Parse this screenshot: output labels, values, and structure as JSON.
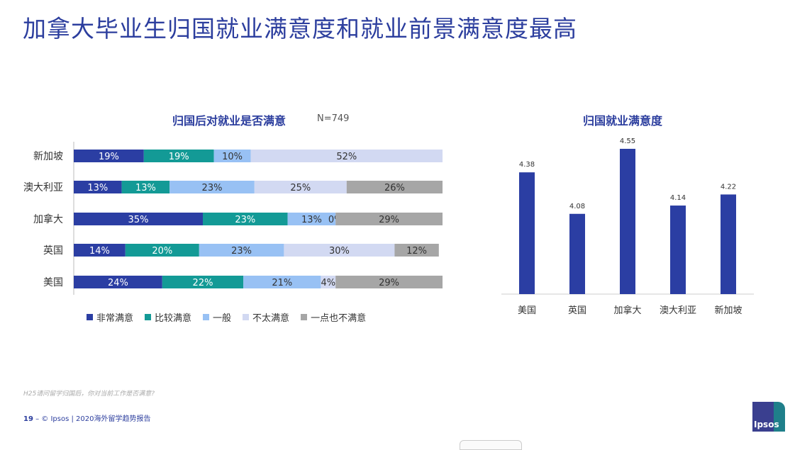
{
  "title": "加拿大毕业生归国就业满意度和就业前景满意度最高",
  "colors": {
    "very_satisfied": "#2b3ea3",
    "satisfied": "#139a96",
    "neutral": "#98c1f4",
    "not_very": "#d2d9f2",
    "not_at_all": "#a6a6a6",
    "bar_right": "#2b3ea3"
  },
  "left_chart": {
    "title": "归国后对就业是否满意",
    "n_label": "N=749"
  },
  "right_chart": {
    "title": "归国就业满意度"
  },
  "legend": [
    "非常满意",
    "比较满意",
    "一般",
    "不太满意",
    "一点也不满意"
  ],
  "chart_data": [
    {
      "type": "bar",
      "orientation": "horizontal",
      "stacked": true,
      "title": "归国后对就业是否满意",
      "categories": [
        "新加坡",
        "澳大利亚",
        "加拿大",
        "英国",
        "美国"
      ],
      "series": [
        {
          "name": "非常满意",
          "values": [
            19,
            13,
            35,
            14,
            24
          ]
        },
        {
          "name": "比较满意",
          "values": [
            19,
            13,
            23,
            20,
            22
          ]
        },
        {
          "name": "一般",
          "values": [
            10,
            23,
            13,
            23,
            21
          ]
        },
        {
          "name": "不太满意",
          "values": [
            52,
            25,
            0,
            30,
            4
          ]
        },
        {
          "name": "一点也不满意",
          "values": [
            null,
            26,
            29,
            12,
            29
          ]
        }
      ],
      "unit": "%",
      "legend_position": "bottom"
    },
    {
      "type": "bar",
      "title": "归国就业满意度",
      "categories": [
        "美国",
        "英国",
        "加拿大",
        "澳大利亚",
        "新加坡"
      ],
      "values": [
        4.38,
        4.08,
        4.55,
        4.14,
        4.22
      ]
    }
  ],
  "footnote": "H25请问留学归国后，你对当前工作是否满意?",
  "footer": {
    "page": "19",
    "text": "– © Ipsos | 2020海外留学趋势报告"
  },
  "logo_text": "Ipsos"
}
